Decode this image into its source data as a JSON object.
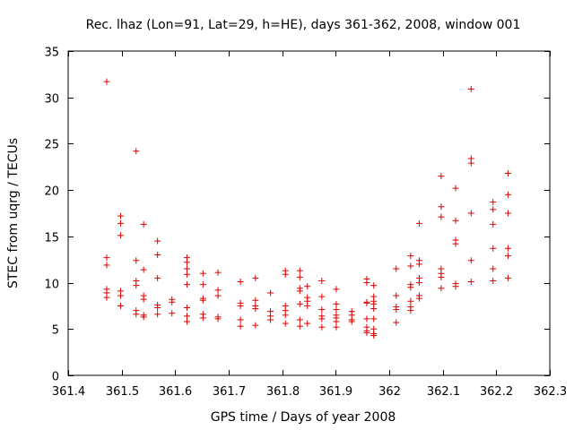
{
  "chart_data": {
    "type": "scatter",
    "title": "Rec. lhaz (Lon=91, Lat=29, h=HE), days 361-362, 2008, window 001",
    "xlabel": "GPS time / Days of year 2008",
    "ylabel": "STEC from uqrg / TECUs",
    "xlim": [
      361.4,
      362.3
    ],
    "ylim": [
      0,
      35
    ],
    "xticks": [
      361.4,
      361.5,
      361.6,
      361.7,
      361.8,
      361.9,
      362.0,
      362.1,
      362.2,
      362.3
    ],
    "xtick_labels": [
      "361.4",
      "361.5",
      "361.6",
      "361.7",
      "361.8",
      "361.9",
      "362",
      "362.1",
      "362.2",
      "362.3"
    ],
    "yticks": [
      0,
      5,
      10,
      15,
      20,
      25,
      30,
      35
    ],
    "ytick_labels": [
      "0",
      "5",
      "10",
      "15",
      "20",
      "25",
      "30",
      "35"
    ],
    "grid": false,
    "marker": "+",
    "color": "#dd0000",
    "series": [
      {
        "points": [
          [
            361.472,
            31.7
          ],
          [
            361.472,
            12.7
          ],
          [
            361.472,
            11.9
          ],
          [
            361.472,
            9.3
          ],
          [
            361.472,
            8.9
          ],
          [
            361.472,
            8.4
          ],
          [
            361.498,
            17.2
          ],
          [
            361.498,
            16.4
          ],
          [
            361.498,
            15.1
          ],
          [
            361.498,
            9.1
          ],
          [
            361.498,
            8.6
          ],
          [
            361.498,
            7.5
          ],
          [
            361.527,
            24.2
          ],
          [
            361.527,
            12.4
          ],
          [
            361.527,
            10.2
          ],
          [
            361.527,
            9.7
          ],
          [
            361.527,
            7.0
          ],
          [
            361.527,
            6.6
          ],
          [
            361.541,
            16.3
          ],
          [
            361.541,
            11.4
          ],
          [
            361.541,
            8.6
          ],
          [
            361.541,
            8.2
          ],
          [
            361.541,
            6.5
          ],
          [
            361.541,
            6.3
          ],
          [
            361.567,
            14.5
          ],
          [
            361.567,
            13.0
          ],
          [
            361.567,
            10.5
          ],
          [
            361.567,
            7.6
          ],
          [
            361.567,
            7.3
          ],
          [
            361.567,
            6.6
          ],
          [
            361.594,
            8.2
          ],
          [
            361.594,
            7.9
          ],
          [
            361.594,
            6.7
          ],
          [
            361.622,
            12.7
          ],
          [
            361.622,
            12.2
          ],
          [
            361.622,
            11.5
          ],
          [
            361.622,
            10.9
          ],
          [
            361.622,
            9.8
          ],
          [
            361.622,
            7.3
          ],
          [
            361.622,
            6.4
          ],
          [
            361.622,
            5.8
          ],
          [
            361.652,
            11.0
          ],
          [
            361.652,
            9.8
          ],
          [
            361.652,
            8.3
          ],
          [
            361.652,
            8.1
          ],
          [
            361.652,
            6.6
          ],
          [
            361.652,
            6.2
          ],
          [
            361.68,
            11.1
          ],
          [
            361.68,
            9.2
          ],
          [
            361.68,
            8.6
          ],
          [
            361.68,
            6.3
          ],
          [
            361.68,
            6.1
          ],
          [
            361.722,
            10.1
          ],
          [
            361.722,
            7.8
          ],
          [
            361.722,
            7.5
          ],
          [
            361.722,
            6.0
          ],
          [
            361.722,
            5.3
          ],
          [
            361.75,
            10.5
          ],
          [
            361.75,
            8.1
          ],
          [
            361.75,
            7.5
          ],
          [
            361.75,
            7.2
          ],
          [
            361.75,
            5.4
          ],
          [
            361.778,
            8.9
          ],
          [
            361.778,
            6.9
          ],
          [
            361.778,
            6.4
          ],
          [
            361.778,
            6.0
          ],
          [
            361.806,
            11.3
          ],
          [
            361.806,
            10.9
          ],
          [
            361.806,
            7.5
          ],
          [
            361.806,
            7.0
          ],
          [
            361.806,
            6.5
          ],
          [
            361.806,
            5.6
          ],
          [
            361.833,
            11.3
          ],
          [
            361.833,
            10.6
          ],
          [
            361.833,
            9.4
          ],
          [
            361.833,
            9.1
          ],
          [
            361.833,
            7.7
          ],
          [
            361.833,
            6.0
          ],
          [
            361.833,
            5.3
          ],
          [
            361.847,
            9.6
          ],
          [
            361.847,
            8.4
          ],
          [
            361.847,
            8.0
          ],
          [
            361.847,
            7.5
          ],
          [
            361.847,
            5.6
          ],
          [
            361.874,
            10.2
          ],
          [
            361.874,
            8.5
          ],
          [
            361.874,
            7.1
          ],
          [
            361.874,
            6.4
          ],
          [
            361.874,
            6.1
          ],
          [
            361.874,
            5.2
          ],
          [
            361.901,
            9.3
          ],
          [
            361.901,
            7.7
          ],
          [
            361.901,
            7.1
          ],
          [
            361.901,
            6.5
          ],
          [
            361.901,
            6.2
          ],
          [
            361.901,
            5.8
          ],
          [
            361.901,
            5.2
          ],
          [
            361.93,
            6.9
          ],
          [
            361.93,
            6.5
          ],
          [
            361.93,
            6.0
          ],
          [
            361.93,
            5.8
          ],
          [
            361.958,
            10.4
          ],
          [
            361.958,
            10.0
          ],
          [
            361.958,
            7.9
          ],
          [
            361.958,
            7.8
          ],
          [
            361.958,
            6.1
          ],
          [
            361.958,
            5.2
          ],
          [
            361.958,
            4.8
          ],
          [
            361.958,
            4.6
          ],
          [
            361.971,
            9.7
          ],
          [
            361.971,
            8.5
          ],
          [
            361.971,
            8.0
          ],
          [
            361.971,
            7.7
          ],
          [
            361.971,
            7.2
          ],
          [
            361.971,
            6.1
          ],
          [
            361.971,
            5.0
          ],
          [
            361.971,
            4.5
          ],
          [
            361.971,
            4.3
          ],
          [
            362.013,
            11.5
          ],
          [
            362.013,
            8.6
          ],
          [
            362.013,
            7.4
          ],
          [
            362.013,
            7.1
          ],
          [
            362.013,
            5.7
          ],
          [
            362.04,
            12.9
          ],
          [
            362.04,
            11.8
          ],
          [
            362.04,
            9.8
          ],
          [
            362.04,
            9.5
          ],
          [
            362.04,
            8.0
          ],
          [
            362.04,
            7.4
          ],
          [
            362.04,
            7.0
          ],
          [
            362.056,
            16.4
          ],
          [
            362.056,
            12.4
          ],
          [
            362.056,
            12.0
          ],
          [
            362.056,
            10.5
          ],
          [
            362.056,
            10.0
          ],
          [
            362.056,
            8.6
          ],
          [
            362.056,
            8.3
          ],
          [
            362.097,
            21.5
          ],
          [
            362.097,
            18.2
          ],
          [
            362.097,
            17.1
          ],
          [
            362.097,
            11.5
          ],
          [
            362.097,
            11.0
          ],
          [
            362.097,
            10.6
          ],
          [
            362.097,
            9.4
          ],
          [
            362.124,
            20.2
          ],
          [
            362.124,
            16.7
          ],
          [
            362.124,
            14.6
          ],
          [
            362.124,
            14.2
          ],
          [
            362.124,
            9.9
          ],
          [
            362.124,
            9.6
          ],
          [
            362.153,
            30.9
          ],
          [
            362.153,
            23.4
          ],
          [
            362.153,
            22.9
          ],
          [
            362.153,
            17.5
          ],
          [
            362.153,
            12.4
          ],
          [
            362.153,
            10.1
          ],
          [
            362.194,
            18.7
          ],
          [
            362.194,
            17.9
          ],
          [
            362.194,
            16.3
          ],
          [
            362.194,
            13.7
          ],
          [
            362.194,
            11.5
          ],
          [
            362.194,
            10.2
          ],
          [
            362.222,
            21.8
          ],
          [
            362.222,
            19.5
          ],
          [
            362.222,
            17.5
          ],
          [
            362.222,
            13.7
          ],
          [
            362.222,
            12.9
          ],
          [
            362.222,
            10.5
          ]
        ]
      }
    ]
  }
}
